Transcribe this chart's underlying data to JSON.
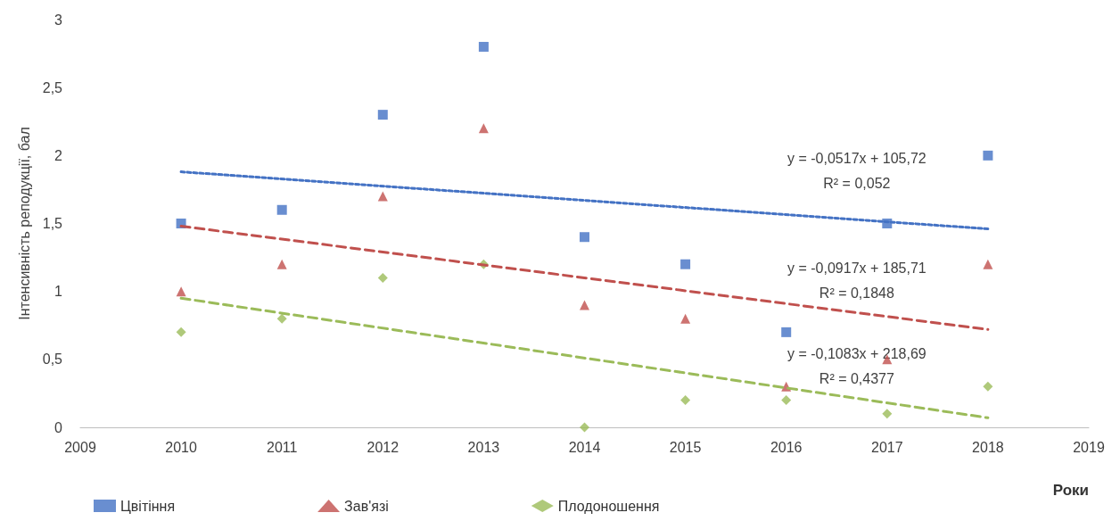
{
  "chart_data": {
    "type": "scatter",
    "xlabel": "Роки",
    "ylabel": "Інтенсивність реподукції, бал",
    "xlim": [
      2009,
      2019
    ],
    "xticks": [
      2009,
      2010,
      2011,
      2012,
      2013,
      2014,
      2015,
      2016,
      2017,
      2018,
      2019
    ],
    "ylim": [
      0,
      3
    ],
    "yticks": [
      0,
      {
        "value": 0.5,
        "label": "0,5"
      },
      1,
      {
        "value": 1.5,
        "label": "1,5"
      },
      2,
      {
        "value": 2.5,
        "label": "2,5"
      },
      3
    ],
    "x": [
      2010,
      2011,
      2012,
      2013,
      2014,
      2015,
      2016,
      2017,
      2018
    ],
    "grid": false,
    "legend": "bottom",
    "series": [
      {
        "name": "Цвітіння",
        "color": "#4472c4",
        "marker": "square",
        "values": [
          1.5,
          1.6,
          2.3,
          2.8,
          1.4,
          1.2,
          0.7,
          1.5,
          2.0
        ]
      },
      {
        "name": "Зав'язі",
        "color": "#c0504d",
        "marker": "triangle",
        "values": [
          1.0,
          1.2,
          1.7,
          2.2,
          0.9,
          0.8,
          0.3,
          0.5,
          1.2
        ]
      },
      {
        "name": "Плодоношення",
        "color": "#9bbb59",
        "marker": "diamond",
        "values": [
          0.7,
          0.8,
          1.1,
          1.2,
          0.0,
          0.2,
          0.2,
          0.1,
          0.3
        ]
      },
      {
        "type": "line",
        "color": "#4472c4",
        "line_style": "dotted",
        "marker": "none",
        "values": [
          1.88,
          null,
          null,
          null,
          null,
          null,
          null,
          null,
          1.46
        ]
      },
      {
        "type": "line",
        "color": "#c0504d",
        "line_style": "dashed",
        "marker": "none",
        "values": [
          1.48,
          null,
          null,
          null,
          null,
          null,
          null,
          null,
          0.72
        ]
      },
      {
        "type": "line",
        "color": "#9bbb59",
        "line_style": "dashed",
        "marker": "none",
        "values": [
          0.95,
          null,
          null,
          null,
          null,
          null,
          null,
          null,
          0.07
        ]
      }
    ],
    "annotations": [
      "y = -0,0517x + 105,72\nR² = 0,052",
      "y = -0,0917x + 185,71\nR² = 0,1848",
      "y = -0,1083x + 218,69\nR² = 0,4377"
    ]
  }
}
